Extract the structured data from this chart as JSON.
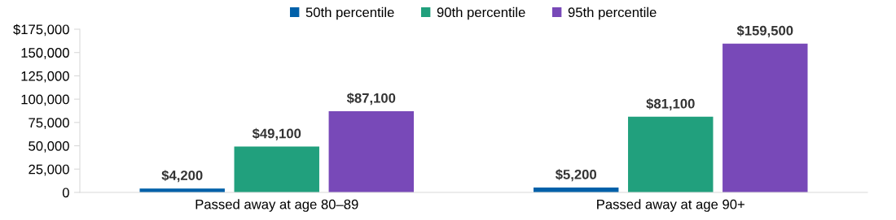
{
  "chart_data": {
    "type": "bar",
    "categories": [
      "Passed away at age 80–89",
      "Passed away at age 90+"
    ],
    "series": [
      {
        "name": "50th percentile",
        "color": "#0060a9",
        "values": [
          4200,
          5200
        ],
        "value_labels": [
          "$4,200",
          "$5,200"
        ]
      },
      {
        "name": "90th percentile",
        "color": "#21a07d",
        "values": [
          49100,
          81100
        ],
        "value_labels": [
          "$49,100",
          "$81,100"
        ]
      },
      {
        "name": "95th percentile",
        "color": "#7849b8",
        "values": [
          87100,
          159500
        ],
        "value_labels": [
          "$87,100",
          "$159,500"
        ]
      }
    ],
    "ylim": [
      0,
      175000
    ],
    "yticks": [
      0,
      {
        "value": 25000,
        "label": "25,000"
      },
      {
        "value": 50000,
        "label": "50,000"
      },
      {
        "value": 75000,
        "label": "75,000"
      },
      {
        "value": 100000,
        "label": "100,000"
      },
      {
        "value": 125000,
        "label": "125,000"
      },
      {
        "value": 150000,
        "label": "150,000"
      },
      {
        "value": 175000,
        "label": "$175,000"
      }
    ],
    "grid": false,
    "legend": "top"
  }
}
